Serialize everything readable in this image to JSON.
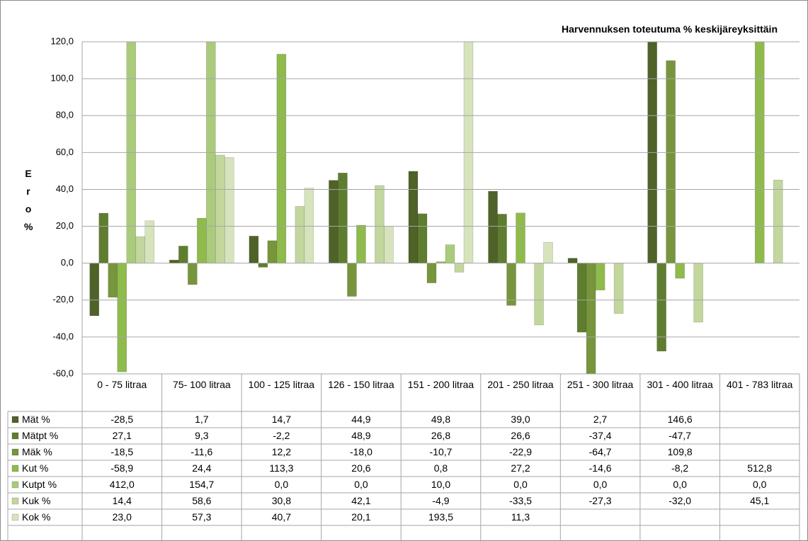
{
  "chart_data": {
    "type": "bar",
    "title": "Harvennuksen toteutuma % keskijäreyksittäin",
    "y_label": "Ero %",
    "categories": [
      "0 - 75 litraa",
      "75- 100 litraa",
      "100 - 125 litraa",
      "126 - 150 litraa",
      "151 - 200 litraa",
      "201 - 250 litraa",
      "251 - 300 litraa",
      "301 - 400 litraa",
      "401 - 783 litraa"
    ],
    "ylim": [
      -60,
      120
    ],
    "yticks": [
      {
        "value": -60,
        "label": "-60,0"
      },
      {
        "value": -40,
        "label": "-40,0"
      },
      {
        "value": -20,
        "label": "-20,0"
      },
      {
        "value": 0,
        "label": "0,0"
      },
      {
        "value": 20,
        "label": "20,0"
      },
      {
        "value": 40,
        "label": "40,0"
      },
      {
        "value": 60,
        "label": "60,0"
      },
      {
        "value": 80,
        "label": "80,0"
      },
      {
        "value": 100,
        "label": "100,0"
      },
      {
        "value": 120,
        "label": "120,0"
      }
    ],
    "grid": true,
    "series": [
      {
        "name": "Mät %",
        "color": "#4f6228",
        "values": [
          -28.5,
          1.7,
          14.7,
          44.9,
          49.8,
          39.0,
          2.7,
          146.6,
          null
        ],
        "value_labels": [
          "-28,5",
          "1,7",
          "14,7",
          "44,9",
          "49,8",
          "39,0",
          "2,7",
          "146,6",
          null
        ]
      },
      {
        "name": "Mätpt %",
        "color": "#5f7d2f",
        "values": [
          27.1,
          9.3,
          -2.2,
          48.9,
          26.8,
          26.6,
          -37.4,
          -47.7,
          null
        ],
        "value_labels": [
          "27,1",
          "9,3",
          "-2,2",
          "48,9",
          "26,8",
          "26,6",
          "-37,4",
          "-47,7",
          null
        ]
      },
      {
        "name": "Mäk %",
        "color": "#77953d",
        "values": [
          -18.5,
          -11.6,
          12.2,
          -18.0,
          -10.7,
          -22.9,
          -64.7,
          109.8,
          null
        ],
        "value_labels": [
          "-18,5",
          "-11,6",
          "12,2",
          "-18,0",
          "-10,7",
          "-22,9",
          "-64,7",
          "109,8",
          null
        ]
      },
      {
        "name": "Kut %",
        "color": "#8fba4c",
        "values": [
          -58.9,
          24.4,
          113.3,
          20.6,
          0.8,
          27.2,
          -14.6,
          -8.2,
          512.8
        ],
        "value_labels": [
          "-58,9",
          "24,4",
          "113,3",
          "20,6",
          "0,8",
          "27,2",
          "-14,6",
          "-8,2",
          "512,8"
        ]
      },
      {
        "name": "Kutpt %",
        "color": "#aacb7b",
        "values": [
          412.0,
          154.7,
          0.0,
          0.0,
          10.0,
          0.0,
          0.0,
          0.0,
          0.0
        ],
        "value_labels": [
          "412,0",
          "154,7",
          "0,0",
          "0,0",
          "10,0",
          "0,0",
          "0,0",
          "0,0",
          "0,0"
        ]
      },
      {
        "name": "Kuk %",
        "color": "#c2d69e",
        "values": [
          14.4,
          58.6,
          30.8,
          42.1,
          -4.9,
          -33.5,
          -27.3,
          -32.0,
          45.1
        ],
        "value_labels": [
          "14,4",
          "58,6",
          "30,8",
          "42,1",
          "-4,9",
          "-33,5",
          "-27,3",
          "-32,0",
          "45,1"
        ]
      },
      {
        "name": "Kok %",
        "color": "#d6e3bc",
        "values": [
          23.0,
          57.3,
          40.7,
          20.1,
          193.5,
          11.3,
          null,
          null,
          null
        ],
        "value_labels": [
          "23,0",
          "57,3",
          "40,7",
          "20,1",
          "193,5",
          "11,3",
          null,
          null,
          null
        ]
      }
    ]
  }
}
